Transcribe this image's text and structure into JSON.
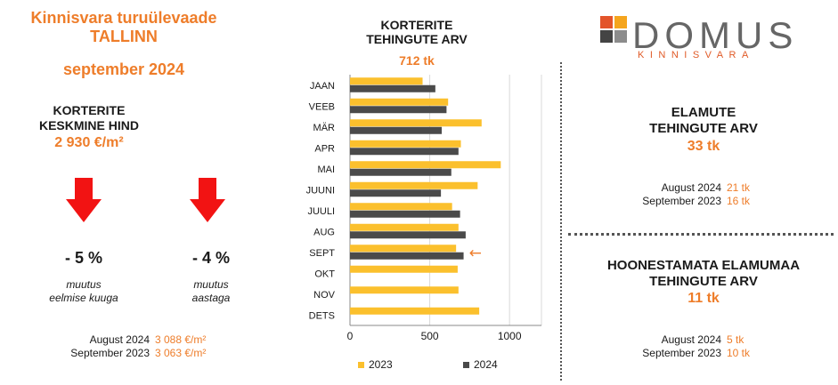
{
  "left": {
    "title_line1": "Kinnisvara turuülevaade",
    "title_line2": "TALLINN",
    "month": "september 2024",
    "price_head_line1": "KORTERITE",
    "price_head_line2": "KESKMINE HIND",
    "price_value": "2 930 €/m²",
    "change_month": "- 5 %",
    "change_month_note_line1": "muutus",
    "change_month_note_line2": "eelmise kuuga",
    "change_year": "- 4 %",
    "change_year_note_line1": "muutus",
    "change_year_note_line2": "aastaga",
    "compare": [
      {
        "label": "August 2024",
        "value": "3 088 €/m²"
      },
      {
        "label": "September 2023",
        "value": "3 063 €/m²"
      }
    ]
  },
  "chart": {
    "title_line1": "KORTERITE",
    "title_line2": "TEHINGUTE ARV",
    "total": "712 tk"
  },
  "chart_data": {
    "type": "bar",
    "orientation": "horizontal",
    "categories": [
      "JAAN",
      "VEEB",
      "MÄR",
      "APR",
      "MAI",
      "JUUNI",
      "JUULI",
      "AUG",
      "SEPT",
      "OKT",
      "NOV",
      "DETS"
    ],
    "series": [
      {
        "name": "2023",
        "color": "#fbc02d",
        "values": [
          455,
          615,
          825,
          695,
          945,
          800,
          640,
          680,
          665,
          675,
          680,
          810
        ]
      },
      {
        "name": "2024",
        "color": "#4a4a4a",
        "values": [
          535,
          605,
          575,
          680,
          635,
          570,
          690,
          725,
          712,
          null,
          null,
          null
        ]
      }
    ],
    "xlim": [
      0,
      1200
    ],
    "xticks": [
      0,
      500,
      1000
    ],
    "legend_position": "bottom",
    "grid": true,
    "annotation": {
      "category": "SEPT",
      "text": "←"
    }
  },
  "logo": {
    "word": "DOMUS",
    "sub": "KINNISVARA",
    "colors": [
      "#e3542a",
      "#f5a51d",
      "#444444",
      "#8c8c8c"
    ]
  },
  "right": {
    "houses_head_line1": "ELAMUTE",
    "houses_head_line2": "TEHINGUTE ARV",
    "houses_value": "33 tk",
    "houses_compare": [
      {
        "label": "August 2024",
        "value": "21 tk"
      },
      {
        "label": "September 2023",
        "value": "16 tk"
      }
    ],
    "land_head_line1": "HOONESTAMATA ELAMUMAA",
    "land_head_line2": "TEHINGUTE ARV",
    "land_value": "11 tk",
    "land_compare": [
      {
        "label": "August 2024",
        "value": "5 tk"
      },
      {
        "label": "September 2023",
        "value": "10 tk"
      }
    ]
  }
}
